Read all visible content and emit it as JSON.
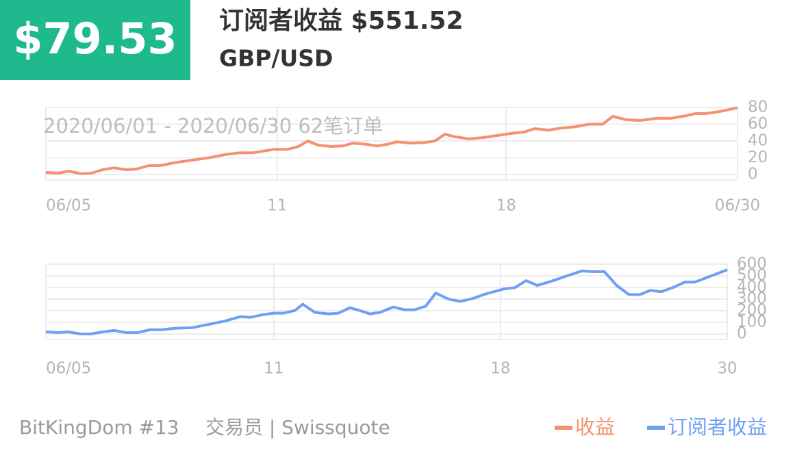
{
  "header": {
    "price": "$79.53",
    "title": "订阅者收益 $551.52",
    "pair": "GBP/USD"
  },
  "chart_data": [
    {
      "type": "line",
      "subtitle": "2020/06/01 - 2020/06/30  62笔订单",
      "x": [
        0,
        1.1,
        2,
        3.1,
        4,
        5,
        6,
        7.1,
        8,
        9.1,
        10.1,
        11.3,
        12.8,
        14.4,
        15.9,
        17.1,
        18.3,
        19.2,
        20.1,
        21.3,
        22.2,
        23.1,
        24,
        25.2,
        26.2,
        27.1,
        28.3,
        29.2,
        30.1,
        31,
        32.2,
        33.4,
        34.3,
        35.2,
        36.1,
        37.3,
        38.5,
        39.8,
        41,
        42.2,
        43.1,
        44.3,
        45.5,
        46.7,
        47.9,
        49.1,
        50,
        51.2,
        52.4,
        53.9,
        55.1,
        56.4,
        57.3,
        58.2,
        59.4,
        61
      ],
      "xlim": [
        0,
        61
      ],
      "xticks": [
        {
          "value": 0,
          "label": "06/05"
        },
        {
          "value": 20.4,
          "label": "11"
        },
        {
          "value": 40.6,
          "label": "18"
        },
        {
          "value": 61,
          "label": "06/30"
        }
      ],
      "ylim": [
        0,
        80
      ],
      "yticks": [
        0,
        20,
        40,
        60,
        80
      ],
      "grid": true,
      "series": [
        {
          "name": "收益",
          "color": "#f59170",
          "values": [
            2.5,
            1.6,
            4,
            1,
            1.6,
            5.7,
            8,
            5.7,
            6.5,
            10.6,
            10.6,
            14,
            17,
            20,
            24,
            26,
            26,
            28,
            30,
            30,
            33,
            40,
            35,
            33.5,
            34,
            37.5,
            36,
            34,
            36,
            39,
            37.5,
            38,
            40,
            48,
            45,
            42.5,
            44,
            46.5,
            49,
            50.6,
            54.7,
            53,
            55.5,
            57,
            60,
            60,
            69.4,
            65.3,
            64.5,
            67,
            67,
            70,
            72.7,
            72.7,
            75,
            79.5
          ]
        }
      ]
    },
    {
      "type": "line",
      "x": [
        0,
        1.1,
        2,
        3.1,
        4,
        5.1,
        6.1,
        7.2,
        8.2,
        9.3,
        10.3,
        11.5,
        13.1,
        14.6,
        16.1,
        17.4,
        18.3,
        19.5,
        20.4,
        21.3,
        22.3,
        23,
        24.1,
        25.3,
        26.2,
        27.2,
        28.1,
        29,
        29.9,
        31.1,
        32.1,
        33,
        34,
        34.9,
        36.1,
        37.1,
        38.2,
        39.4,
        41,
        42,
        43,
        44,
        45.2,
        46.5,
        48,
        48.9,
        50,
        51.1,
        52.2,
        53.2,
        54.1,
        55.1,
        56.3,
        57.2,
        58.1,
        61
      ],
      "xlim": [
        0,
        61
      ],
      "xticks": [
        {
          "value": 0,
          "label": "06/05"
        },
        {
          "value": 20.4,
          "label": "11"
        },
        {
          "value": 40.7,
          "label": "18"
        },
        {
          "value": 61,
          "label": "30"
        }
      ],
      "ylim": [
        0,
        600
      ],
      "yticks": [
        0,
        100,
        200,
        300,
        400,
        500,
        600
      ],
      "grid": true,
      "series": [
        {
          "name": "订阅者收益",
          "color": "#6ea0f5",
          "values": [
            18,
            12,
            18,
            0,
            0,
            18,
            30,
            12,
            12,
            36,
            36,
            48,
            54,
            83,
            113,
            149,
            143,
            167,
            179,
            179,
            202,
            256,
            185,
            173,
            179,
            226,
            202,
            173,
            185,
            232,
            208,
            208,
            238,
            351,
            298,
            280,
            304,
            345,
            387,
            399,
            458,
            417,
            452,
            494,
            542,
            536,
            536,
            417,
            339,
            339,
            375,
            363,
            405,
            446,
            446,
            552
          ]
        }
      ]
    }
  ],
  "footer": {
    "author": "BitKingDom #13",
    "broker": "交易员 | Swissquote"
  }
}
